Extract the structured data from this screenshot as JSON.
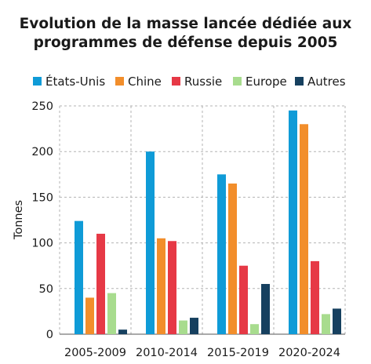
{
  "chart_data": {
    "type": "bar",
    "title_lines": [
      "Evolution de la masse lancée dédiée aux",
      "programmes de défense depuis 2005"
    ],
    "ylabel": "Tonnes",
    "xlabel": "",
    "ylim": [
      0,
      250
    ],
    "yticks": [
      0,
      50,
      100,
      150,
      200,
      250
    ],
    "grid": true,
    "legend_position": "top",
    "categories": [
      "2005-2009",
      "2010-2014",
      "2015-2019",
      "2020-2024"
    ],
    "series": [
      {
        "name": "États-Unis",
        "color": "#0f9bd7",
        "values": [
          124,
          200,
          175,
          245
        ]
      },
      {
        "name": "Chine",
        "color": "#f28e2b",
        "values": [
          40,
          105,
          165,
          230
        ]
      },
      {
        "name": "Russie",
        "color": "#e63946",
        "values": [
          110,
          102,
          75,
          80
        ]
      },
      {
        "name": "Europe",
        "color": "#a8dc8e",
        "values": [
          45,
          15,
          11,
          22
        ]
      },
      {
        "name": "Autres",
        "color": "#16405f",
        "values": [
          5,
          18,
          55,
          28
        ]
      }
    ]
  }
}
